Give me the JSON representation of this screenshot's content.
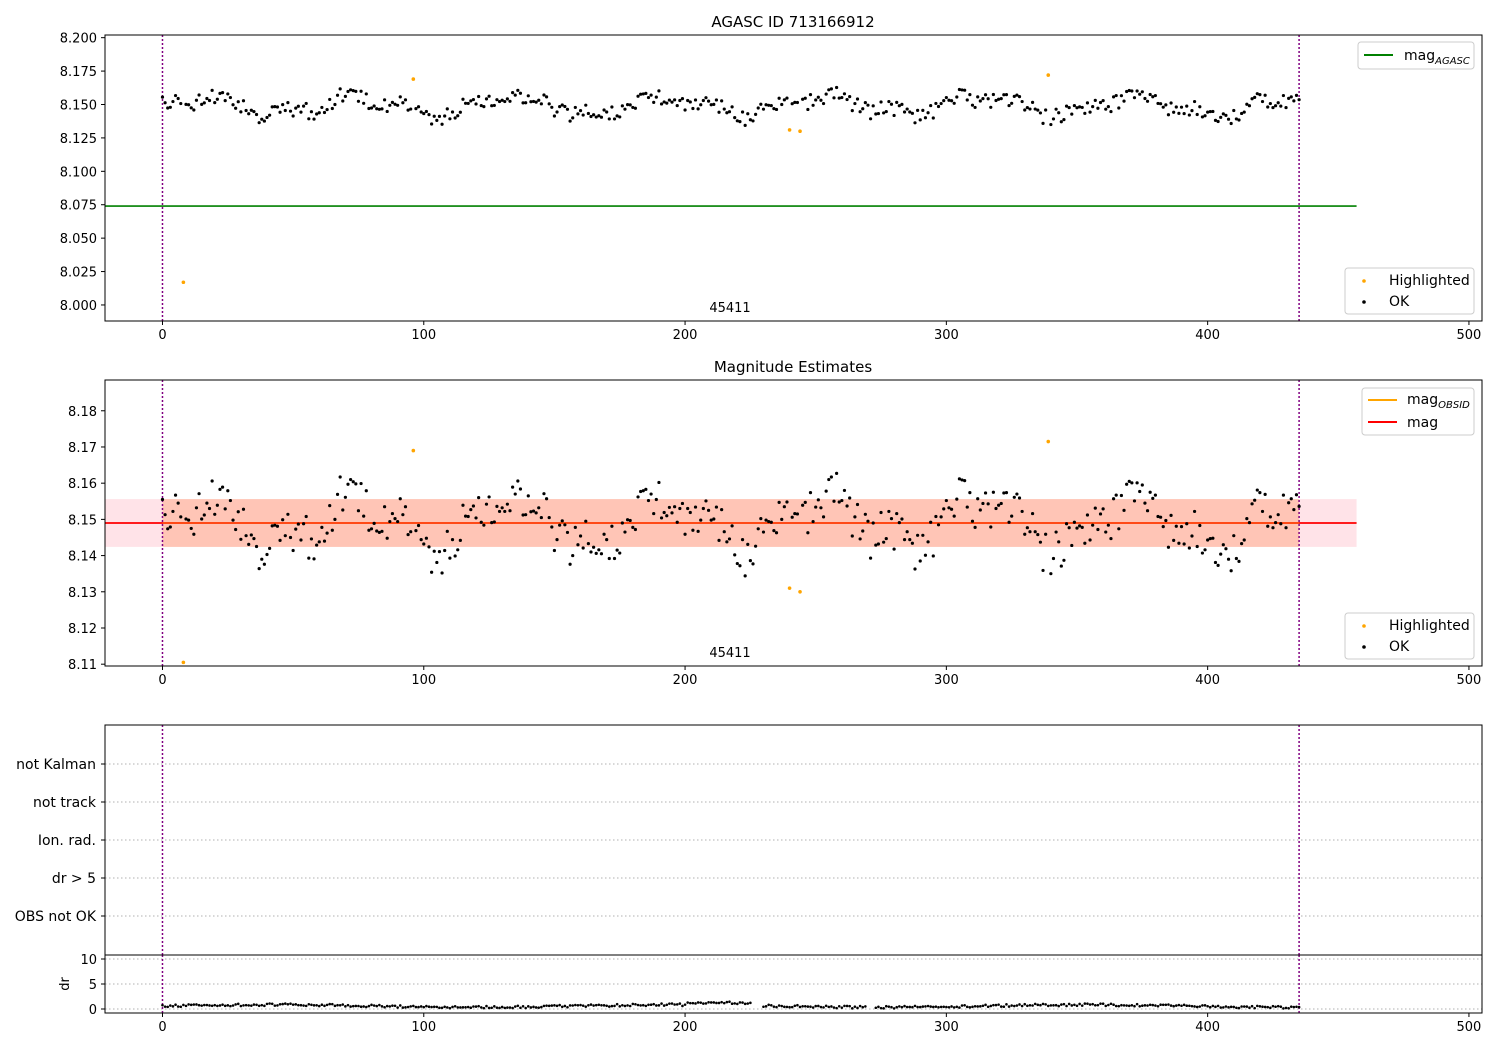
{
  "figure": {
    "title": "AGASC ID 713166912",
    "observation_label": "45411"
  },
  "colors": {
    "ok": "#000000",
    "highlighted": "#ffa500",
    "mag_agasc": "#008000",
    "mag": "#ff0000",
    "mag_obsid": "#ffa500",
    "band_outer": "#ffc0cb",
    "band_inner": "#ffa07a",
    "boundary": "#800080",
    "grid": "#b0b0b0"
  },
  "chart_data": [
    {
      "type": "scatter",
      "title": "AGASC ID 713166912",
      "xlim": [
        -22,
        505
      ],
      "ylim": [
        7.988,
        8.202
      ],
      "xticks": [
        "0",
        "100",
        "200",
        "300",
        "400",
        "500"
      ],
      "yticks": [
        "8.000",
        "8.025",
        "8.050",
        "8.075",
        "8.100",
        "8.125",
        "8.150",
        "8.175",
        "8.200"
      ],
      "annotation": "45411",
      "legend_lines": [
        {
          "label": "mag",
          "subscript": "AGASC",
          "color": "#008000"
        }
      ],
      "legend_points": [
        {
          "label": "Highlighted",
          "color": "#ffa500"
        },
        {
          "label": "OK",
          "color": "#000000"
        }
      ],
      "mag_agasc": 8.074,
      "line_x_range": [
        -22,
        457
      ],
      "boundaries_x": [
        0,
        435
      ],
      "series": [
        {
          "name": "Highlighted",
          "x": [
            8,
            96,
            240,
            244,
            339
          ],
          "y": [
            8.017,
            8.169,
            8.131,
            8.13,
            8.172
          ]
        }
      ]
    },
    {
      "type": "scatter",
      "title": "Magnitude Estimates",
      "xlim": [
        -22,
        505
      ],
      "ylim": [
        8.1095,
        8.1885
      ],
      "xticks": [
        "0",
        "100",
        "200",
        "300",
        "400",
        "500"
      ],
      "yticks": [
        "8.11",
        "8.12",
        "8.13",
        "8.14",
        "8.15",
        "8.16",
        "8.17",
        "8.18"
      ],
      "annotation": "45411",
      "legend_lines": [
        {
          "label": "mag",
          "subscript": "OBSID",
          "color": "#ffa500"
        },
        {
          "label": "mag",
          "subscript": "",
          "color": "#ff0000"
        }
      ],
      "legend_points": [
        {
          "label": "Highlighted",
          "color": "#ffa500"
        },
        {
          "label": "OK",
          "color": "#000000"
        }
      ],
      "mag": 8.149,
      "mag_std": 0.0066,
      "line_x_range": [
        -22,
        457
      ],
      "boundaries_x": [
        0,
        435
      ],
      "series": [
        {
          "name": "Highlighted",
          "x": [
            8,
            96,
            240,
            244,
            339
          ],
          "y": [
            8.1105,
            8.169,
            8.131,
            8.13,
            8.1715
          ]
        }
      ]
    },
    {
      "type": "scatter",
      "title": "",
      "xlim": [
        -22,
        505
      ],
      "categories": [
        "not Kalman",
        "not track",
        "Ion. rad.",
        "dr > 5",
        "OBS not OK"
      ],
      "flags": [],
      "boundaries_x": [
        0,
        435
      ]
    },
    {
      "type": "scatter",
      "title": "",
      "xlim": [
        -22,
        505
      ],
      "ylim": [
        -0.8,
        10.8
      ],
      "ylabel": "dr",
      "xticks": [
        "0",
        "100",
        "200",
        "300",
        "400",
        "500"
      ],
      "yticks": [
        "0",
        "5",
        "10"
      ],
      "boundaries_x": [
        0,
        435
      ],
      "dr_mean": 0.6
    }
  ]
}
